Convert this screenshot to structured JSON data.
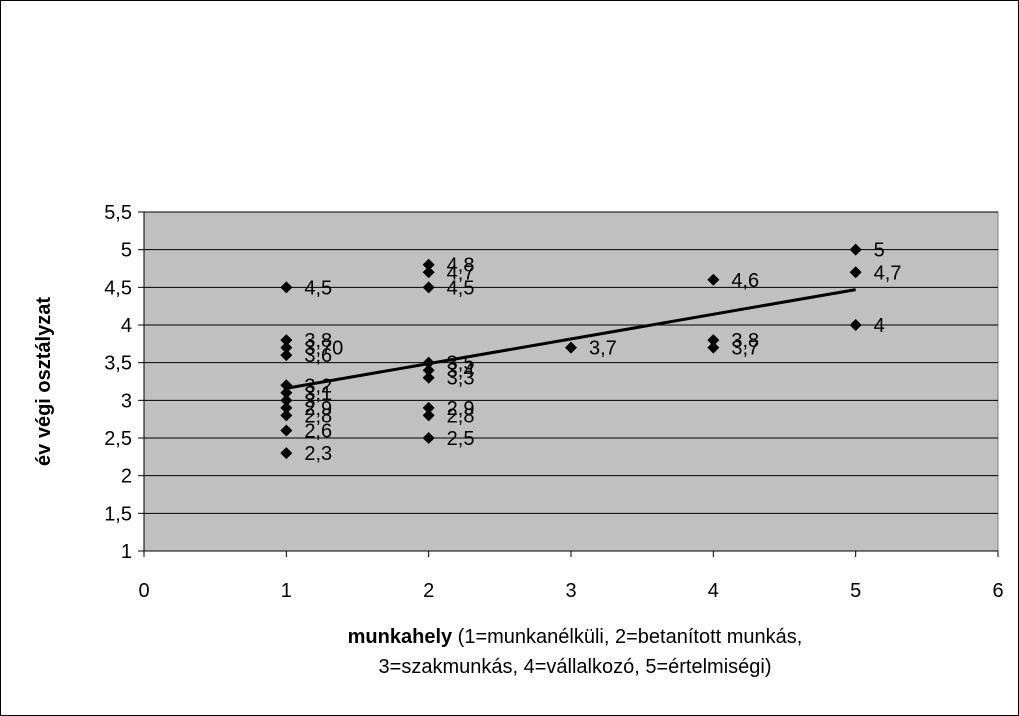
{
  "chart_data": {
    "type": "scatter",
    "title": "",
    "xlabel": {
      "bold": "munkahely",
      "line1": " (1=munkanélküli, 2=betanított munkás,",
      "line2": "3=szakmunkás, 4=vállalkozó, 5=értelmiségi)"
    },
    "ylabel": "év végi osztályzat",
    "xlim": [
      0,
      6
    ],
    "ylim": [
      1,
      5.5
    ],
    "xticks": [
      "0",
      "1",
      "2",
      "3",
      "4",
      "5",
      "6"
    ],
    "yticks": [
      "1",
      "1,5",
      "2",
      "2,5",
      "3",
      "3,5",
      "4",
      "4,5",
      "5",
      "5,5"
    ],
    "grid": "horizontal",
    "plot_background": "#c0c0c0",
    "marker": "diamond",
    "marker_color": "#000000",
    "points": [
      {
        "x": 1,
        "y": 4.5,
        "label": "4,5"
      },
      {
        "x": 1,
        "y": 3.8,
        "label": "3,8"
      },
      {
        "x": 1,
        "y": 3.7,
        "label": "3,70"
      },
      {
        "x": 1,
        "y": 3.6,
        "label": "3,6"
      },
      {
        "x": 1,
        "y": 3.2,
        "label": "3,2"
      },
      {
        "x": 1,
        "y": 3.1,
        "label": "3,1"
      },
      {
        "x": 1,
        "y": 3.0,
        "label": "3"
      },
      {
        "x": 1,
        "y": 2.9,
        "label": "2,9"
      },
      {
        "x": 1,
        "y": 2.8,
        "label": "2,8"
      },
      {
        "x": 1,
        "y": 2.6,
        "label": "2,6"
      },
      {
        "x": 1,
        "y": 2.3,
        "label": "2,3"
      },
      {
        "x": 2,
        "y": 4.8,
        "label": "4,8"
      },
      {
        "x": 2,
        "y": 4.7,
        "label": "4,7"
      },
      {
        "x": 2,
        "y": 4.5,
        "label": "4,5"
      },
      {
        "x": 2,
        "y": 3.5,
        "label": "3,5"
      },
      {
        "x": 2,
        "y": 3.4,
        "label": "3,4"
      },
      {
        "x": 2,
        "y": 3.3,
        "label": "3,3"
      },
      {
        "x": 2,
        "y": 2.9,
        "label": "2,9"
      },
      {
        "x": 2,
        "y": 2.8,
        "label": "2,8"
      },
      {
        "x": 2,
        "y": 2.5,
        "label": "2,5"
      },
      {
        "x": 3,
        "y": 3.7,
        "label": "3,7"
      },
      {
        "x": 4,
        "y": 4.6,
        "label": "4,6"
      },
      {
        "x": 4,
        "y": 3.8,
        "label": "3,8"
      },
      {
        "x": 4,
        "y": 3.7,
        "label": "3,7"
      },
      {
        "x": 5,
        "y": 5.0,
        "label": "5"
      },
      {
        "x": 5,
        "y": 4.7,
        "label": "4,7"
      },
      {
        "x": 5,
        "y": 4.0,
        "label": "4"
      }
    ],
    "trendline": {
      "type": "linear",
      "from": {
        "x": 1,
        "y": 3.16
      },
      "to": {
        "x": 5,
        "y": 4.47
      }
    }
  }
}
